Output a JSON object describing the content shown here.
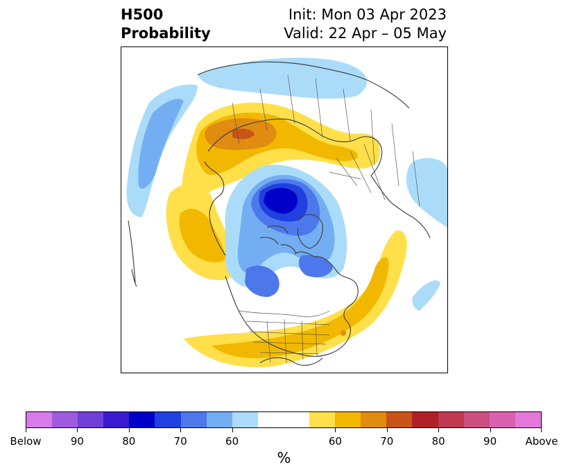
{
  "title": {
    "left_line1": "H500",
    "left_line2": "Probability",
    "right_line1": "Init: Mon 03 Apr 2023",
    "right_line2": "Valid: 22 Apr – 05 May"
  },
  "colorbar": {
    "colors": [
      "#d87ae8",
      "#a05ae0",
      "#7040d8",
      "#3a1ad0",
      "#0000c8",
      "#2040e0",
      "#4c78ec",
      "#74aef2",
      "#aadcfa",
      "#ffffff",
      "#ffffff",
      "#ffe04a",
      "#f2b800",
      "#e08c10",
      "#c85418",
      "#b02028",
      "#c03850",
      "#cc5080",
      "#da60b0",
      "#e678dc"
    ],
    "labels": [
      "Below",
      "90",
      "80",
      "70",
      "60",
      "60",
      "70",
      "80",
      "90",
      "Above"
    ],
    "units": "%"
  }
}
